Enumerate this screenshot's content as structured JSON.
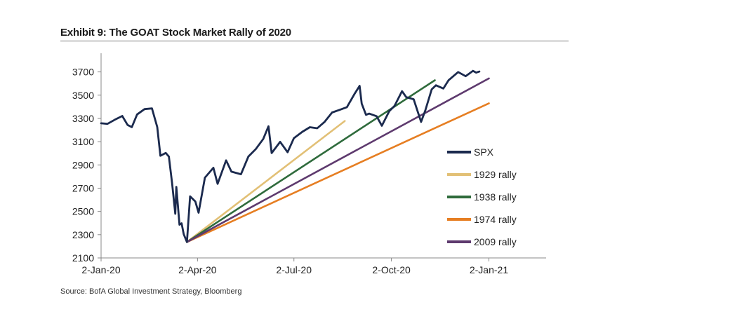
{
  "title": "Exhibit 9: The GOAT Stock Market Rally of 2020",
  "source": "Source: BofA Global Investment Strategy, Bloomberg",
  "chart_data": {
    "type": "line",
    "title": "Exhibit 9: The GOAT Stock Market Rally of 2020",
    "xlabel": "",
    "ylabel": "",
    "ylim": [
      2100,
      3800
    ],
    "y_ticks": [
      2100,
      2300,
      2500,
      2700,
      2900,
      3100,
      3300,
      3500,
      3700
    ],
    "x_ticks": [
      {
        "date": "2020-01-02",
        "label": "2-Jan-20"
      },
      {
        "date": "2020-04-02",
        "label": "2-Apr-20"
      },
      {
        "date": "2020-07-02",
        "label": "2-Jul-20"
      },
      {
        "date": "2020-10-02",
        "label": "2-Oct-20"
      },
      {
        "date": "2021-01-02",
        "label": "2-Jan-21"
      }
    ],
    "xlim": [
      "2020-01-02",
      "2021-02-25"
    ],
    "grid": false,
    "legend_position": "right",
    "series": [
      {
        "name": "SPX",
        "color": "#1b2a4e",
        "points": [
          [
            "2020-01-02",
            3258
          ],
          [
            "2020-01-08",
            3253
          ],
          [
            "2020-01-15",
            3289
          ],
          [
            "2020-01-22",
            3321
          ],
          [
            "2020-01-27",
            3244
          ],
          [
            "2020-01-31",
            3225
          ],
          [
            "2020-02-05",
            3334
          ],
          [
            "2020-02-12",
            3380
          ],
          [
            "2020-02-19",
            3386
          ],
          [
            "2020-02-24",
            3226
          ],
          [
            "2020-02-27",
            2979
          ],
          [
            "2020-03-03",
            3003
          ],
          [
            "2020-03-06",
            2972
          ],
          [
            "2020-03-09",
            2746
          ],
          [
            "2020-03-12",
            2480
          ],
          [
            "2020-03-13",
            2711
          ],
          [
            "2020-03-16",
            2386
          ],
          [
            "2020-03-18",
            2398
          ],
          [
            "2020-03-20",
            2305
          ],
          [
            "2020-03-23",
            2237
          ],
          [
            "2020-03-26",
            2630
          ],
          [
            "2020-03-31",
            2585
          ],
          [
            "2020-04-03",
            2489
          ],
          [
            "2020-04-09",
            2790
          ],
          [
            "2020-04-17",
            2875
          ],
          [
            "2020-04-21",
            2737
          ],
          [
            "2020-04-29",
            2939
          ],
          [
            "2020-05-04",
            2842
          ],
          [
            "2020-05-13",
            2820
          ],
          [
            "2020-05-20",
            2972
          ],
          [
            "2020-05-27",
            3036
          ],
          [
            "2020-06-03",
            3123
          ],
          [
            "2020-06-08",
            3232
          ],
          [
            "2020-06-11",
            3002
          ],
          [
            "2020-06-19",
            3098
          ],
          [
            "2020-06-26",
            3009
          ],
          [
            "2020-07-02",
            3130
          ],
          [
            "2020-07-10",
            3185
          ],
          [
            "2020-07-17",
            3224
          ],
          [
            "2020-07-24",
            3215
          ],
          [
            "2020-07-31",
            3271
          ],
          [
            "2020-08-07",
            3351
          ],
          [
            "2020-08-14",
            3373
          ],
          [
            "2020-08-21",
            3397
          ],
          [
            "2020-08-28",
            3508
          ],
          [
            "2020-09-02",
            3580
          ],
          [
            "2020-09-04",
            3427
          ],
          [
            "2020-09-08",
            3331
          ],
          [
            "2020-09-11",
            3341
          ],
          [
            "2020-09-18",
            3319
          ],
          [
            "2020-09-23",
            3237
          ],
          [
            "2020-09-30",
            3363
          ],
          [
            "2020-10-05",
            3408
          ],
          [
            "2020-10-12",
            3534
          ],
          [
            "2020-10-16",
            3483
          ],
          [
            "2020-10-23",
            3465
          ],
          [
            "2020-10-30",
            3270
          ],
          [
            "2020-11-03",
            3369
          ],
          [
            "2020-11-09",
            3550
          ],
          [
            "2020-11-13",
            3585
          ],
          [
            "2020-11-20",
            3557
          ],
          [
            "2020-11-25",
            3629
          ],
          [
            "2020-12-04",
            3699
          ],
          [
            "2020-12-11",
            3663
          ],
          [
            "2020-12-18",
            3709
          ],
          [
            "2020-12-21",
            3694
          ],
          [
            "2020-12-24",
            3703
          ]
        ]
      },
      {
        "name": "1929 rally",
        "color": "#e2c076",
        "points": [
          [
            "2020-03-23",
            2237
          ],
          [
            "2020-08-19",
            3278
          ]
        ]
      },
      {
        "name": "1938 rally",
        "color": "#2f6b3c",
        "points": [
          [
            "2020-03-23",
            2237
          ],
          [
            "2020-11-12",
            3628
          ]
        ]
      },
      {
        "name": "1974 rally",
        "color": "#e67e22",
        "points": [
          [
            "2020-03-23",
            2237
          ],
          [
            "2021-01-02",
            3430
          ]
        ]
      },
      {
        "name": "2009 rally",
        "color": "#5e3a6e",
        "points": [
          [
            "2020-03-23",
            2237
          ],
          [
            "2021-01-02",
            3644
          ]
        ]
      }
    ]
  }
}
